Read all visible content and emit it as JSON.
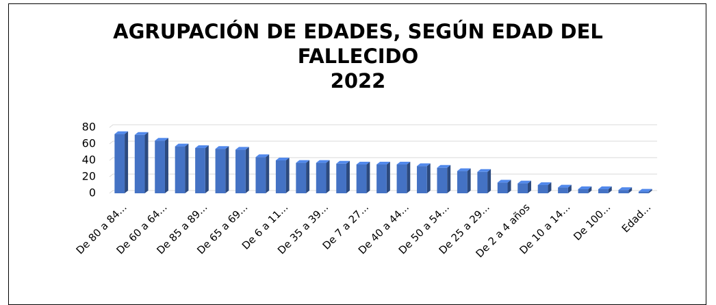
{
  "chart_data": {
    "type": "bar3d",
    "title": "AGRUPACIÓN DE EDADES, SEGÚN EDAD DEL FALLECIDO",
    "subtitle": "2022",
    "categories": [
      "De 80 a 84...",
      null,
      "De 60 a 64...",
      null,
      "De 85 a 89...",
      null,
      "De 65 a 69...",
      null,
      "De 6 a 11...",
      null,
      "De 35 a 39...",
      null,
      "De 7 a 27...",
      null,
      "De 40 a 44...",
      null,
      "De 50 a 54...",
      null,
      "De 25 a 29...",
      null,
      "De 2 a 4 años",
      null,
      "De 10 a 14...",
      null,
      "De 100...",
      null,
      "Edad..."
    ],
    "values": [
      72,
      71,
      64,
      57,
      55,
      54,
      53,
      44,
      40,
      37,
      37,
      36,
      35,
      35,
      35,
      33,
      31,
      27,
      26,
      13,
      12,
      10,
      7,
      5,
      5,
      4,
      2
    ],
    "color": "#4472c4",
    "ylim": [
      0,
      80
    ],
    "yticks": [
      0,
      20,
      40,
      60,
      80
    ],
    "grid": true
  }
}
